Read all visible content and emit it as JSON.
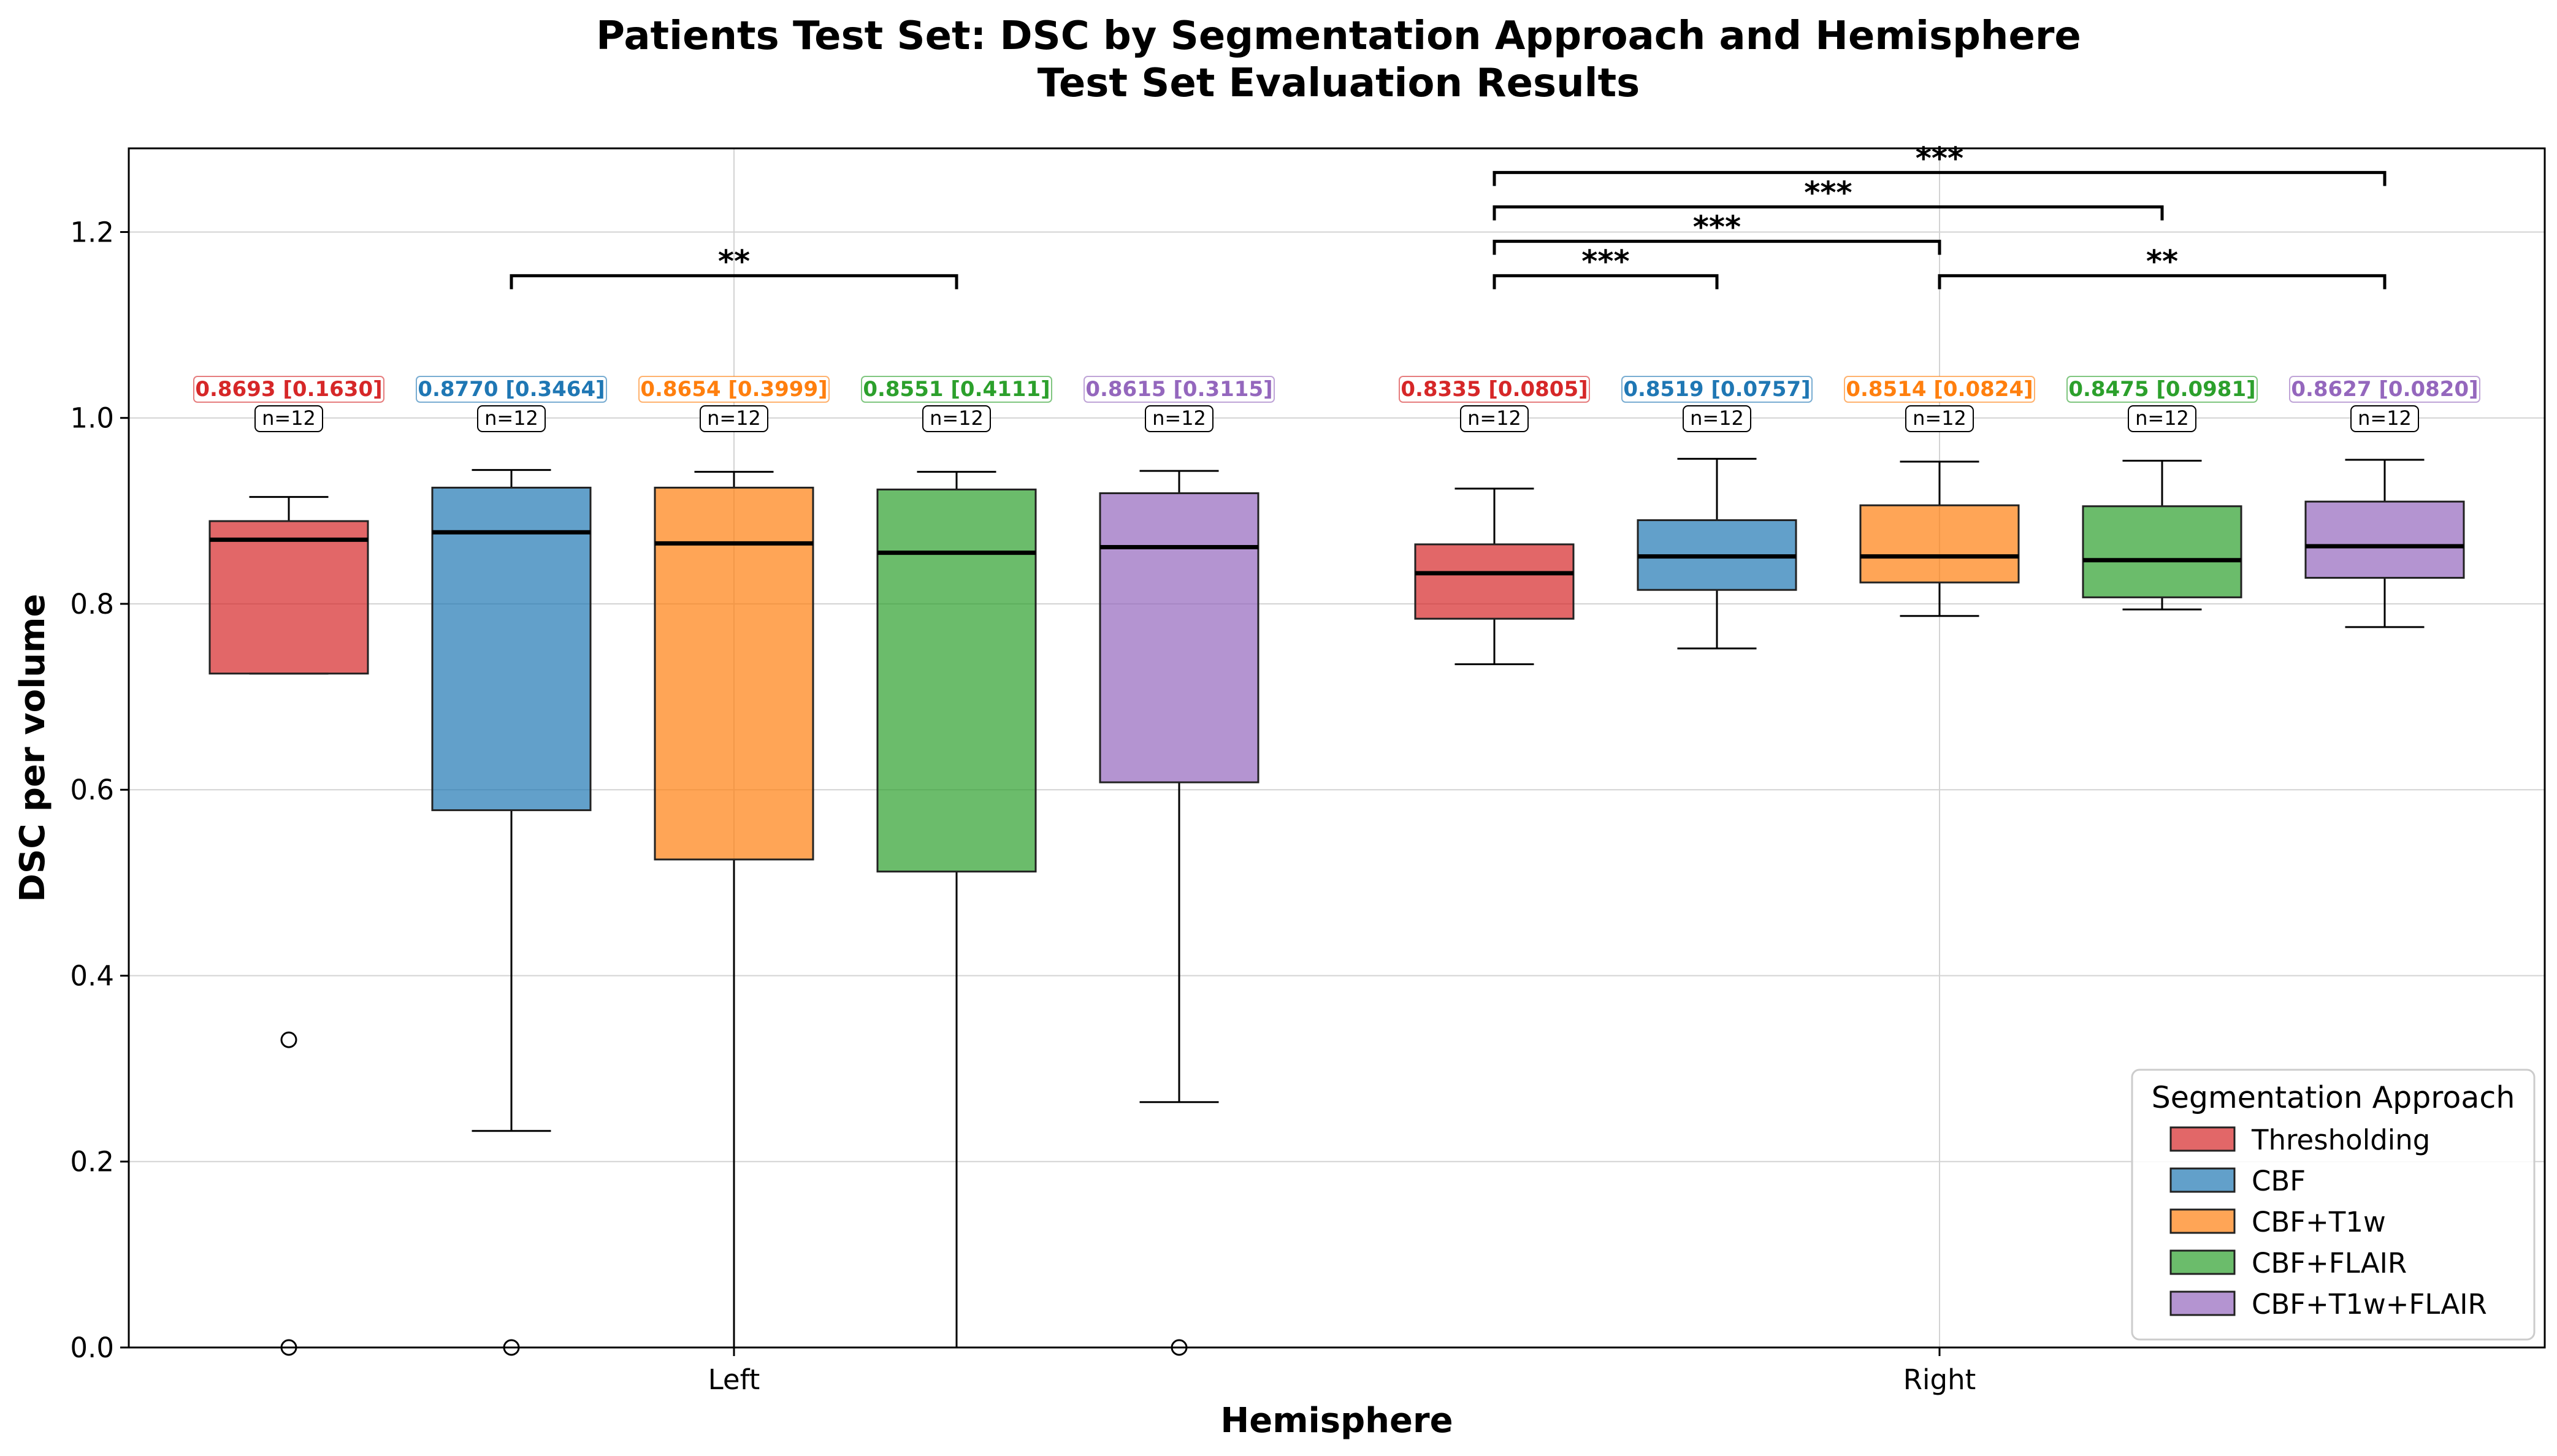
{
  "chart_data": {
    "type": "box",
    "title": "Patients Test Set: DSC by Segmentation Approach and Hemisphere",
    "subtitle": "Test Set Evaluation Results",
    "xlabel": "Hemisphere",
    "ylabel": "DSC per volume",
    "ylim": [
      0,
      1.29
    ],
    "yticks": [
      "0.0",
      "0.2",
      "0.4",
      "0.6",
      "0.8",
      "1.0",
      "1.2"
    ],
    "categories": [
      "Left",
      "Right"
    ],
    "grid": true,
    "legend": {
      "title": "Segmentation Approach",
      "position": "lower-right"
    },
    "series": [
      {
        "name": "Thresholding",
        "color": "#d62728"
      },
      {
        "name": "CBF",
        "color": "#1f77b4"
      },
      {
        "name": "CBF+T1w",
        "color": "#ff7f0e"
      },
      {
        "name": "CBF+FLAIR",
        "color": "#2ca02c"
      },
      {
        "name": "CBF+T1w+FLAIR",
        "color": "#9467bd"
      }
    ],
    "boxes": [
      {
        "category": "Left",
        "series": "Thresholding",
        "whisker_low": 0.725,
        "q1": 0.725,
        "median": 0.869,
        "q3": 0.889,
        "whisker_high": 0.915,
        "outliers": [
          0.331,
          0.0
        ],
        "annotation": "0.8693 [0.1630]",
        "n": "n=12"
      },
      {
        "category": "Left",
        "series": "CBF",
        "whisker_low": 0.233,
        "q1": 0.578,
        "median": 0.877,
        "q3": 0.925,
        "whisker_high": 0.944,
        "outliers": [
          0.0
        ],
        "annotation": "0.8770 [0.3464]",
        "n": "n=12"
      },
      {
        "category": "Left",
        "series": "CBF+T1w",
        "whisker_low": 0.0,
        "q1": 0.525,
        "median": 0.865,
        "q3": 0.925,
        "whisker_high": 0.942,
        "outliers": [],
        "annotation": "0.8654 [0.3999]",
        "n": "n=12"
      },
      {
        "category": "Left",
        "series": "CBF+FLAIR",
        "whisker_low": 0.0,
        "q1": 0.512,
        "median": 0.855,
        "q3": 0.923,
        "whisker_high": 0.942,
        "outliers": [],
        "annotation": "0.8551 [0.4111]",
        "n": "n=12"
      },
      {
        "category": "Left",
        "series": "CBF+T1w+FLAIR",
        "whisker_low": 0.264,
        "q1": 0.608,
        "median": 0.861,
        "q3": 0.919,
        "whisker_high": 0.943,
        "outliers": [
          0.0
        ],
        "annotation": "0.8615 [0.3115]",
        "n": "n=12"
      },
      {
        "category": "Right",
        "series": "Thresholding",
        "whisker_low": 0.735,
        "q1": 0.784,
        "median": 0.833,
        "q3": 0.864,
        "whisker_high": 0.924,
        "outliers": [],
        "annotation": "0.8335 [0.0805]",
        "n": "n=12"
      },
      {
        "category": "Right",
        "series": "CBF",
        "whisker_low": 0.752,
        "q1": 0.815,
        "median": 0.851,
        "q3": 0.89,
        "whisker_high": 0.956,
        "outliers": [],
        "annotation": "0.8519 [0.0757]",
        "n": "n=12"
      },
      {
        "category": "Right",
        "series": "CBF+T1w",
        "whisker_low": 0.787,
        "q1": 0.823,
        "median": 0.851,
        "q3": 0.906,
        "whisker_high": 0.953,
        "outliers": [],
        "annotation": "0.8514 [0.0824]",
        "n": "n=12"
      },
      {
        "category": "Right",
        "series": "CBF+FLAIR",
        "whisker_low": 0.794,
        "q1": 0.807,
        "median": 0.847,
        "q3": 0.905,
        "whisker_high": 0.954,
        "outliers": [],
        "annotation": "0.8475 [0.0981]",
        "n": "n=12"
      },
      {
        "category": "Right",
        "series": "CBF+T1w+FLAIR",
        "whisker_low": 0.775,
        "q1": 0.828,
        "median": 0.862,
        "q3": 0.91,
        "whisker_high": 0.955,
        "outliers": [],
        "annotation": "0.8627 [0.0820]",
        "n": "n=12"
      }
    ],
    "significance": [
      {
        "category": "Left",
        "from": "CBF",
        "to": "CBF+FLAIR",
        "level": 1.153,
        "label": "**"
      },
      {
        "category": "Right",
        "from": "Thresholding",
        "to": "CBF",
        "level": 1.153,
        "label": "***"
      },
      {
        "category": "Right",
        "from": "Thresholding",
        "to": "CBF+T1w",
        "level": 1.19,
        "label": "***"
      },
      {
        "category": "Right",
        "from": "Thresholding",
        "to": "CBF+FLAIR",
        "level": 1.227,
        "label": "***"
      },
      {
        "category": "Right",
        "from": "Thresholding",
        "to": "CBF+T1w+FLAIR",
        "level": 1.264,
        "label": "***"
      },
      {
        "category": "Right",
        "from": "CBF+T1w",
        "to": "CBF+T1w+FLAIR",
        "level": 1.153,
        "label": "**"
      }
    ]
  }
}
